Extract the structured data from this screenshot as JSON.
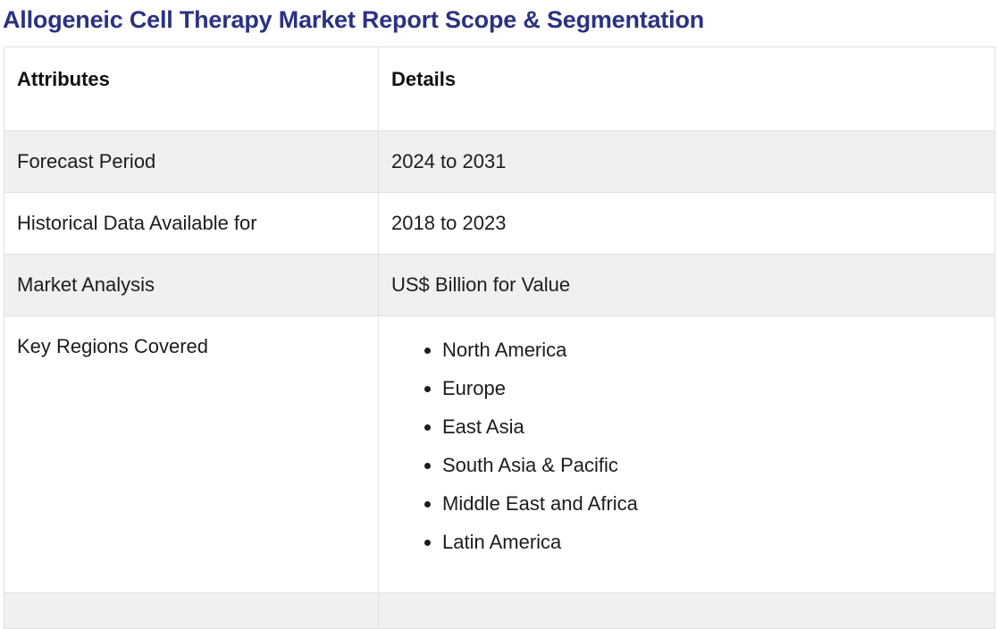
{
  "page": {
    "title": "Allogeneic Cell Therapy Market Report Scope & Segmentation"
  },
  "colors": {
    "title_text": "#2b3282",
    "body_text": "#1c1c1c",
    "header_text": "#111111",
    "alt_row_bg": "#f0f0f1",
    "table_border": "#e2e2e4",
    "page_bg": "#ffffff"
  },
  "table": {
    "columns": [
      {
        "label": "Attributes"
      },
      {
        "label": "Details"
      }
    ],
    "rows": [
      {
        "attribute": "Forecast Period",
        "detail": "2024 to 2031"
      },
      {
        "attribute": "Historical Data Available for",
        "detail": "2018 to 2023"
      },
      {
        "attribute": "Market Analysis",
        "detail": "US$ Billion for Value"
      },
      {
        "attribute": "Key Regions Covered",
        "detail_list": [
          "North America",
          "Europe",
          "East Asia",
          "South Asia & Pacific",
          "Middle East and Africa",
          "Latin America"
        ]
      }
    ]
  }
}
